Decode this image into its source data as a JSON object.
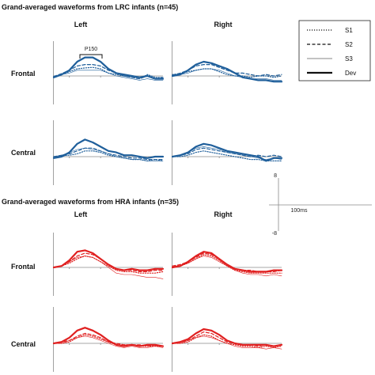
{
  "colors": {
    "lrc": "#1f5f9b",
    "hra": "#e02020",
    "axis": "#8a8a8a"
  },
  "legend": [
    {
      "label": "S1",
      "dash": "1.2,1.8",
      "width": 1.2
    },
    {
      "label": "S2",
      "dash": "4,2.5",
      "width": 1.2
    },
    {
      "label": "S3",
      "dash": "",
      "width": 0.6
    },
    {
      "label": "Dev",
      "dash": "",
      "width": 2.2
    }
  ],
  "scale": {
    "y_top": "8",
    "y_bottom": "-8",
    "x_label": "100ms"
  },
  "p150_label": "P150",
  "chart_data": [
    {
      "type": "line",
      "title": "Grand-averaged waveforms from LRC infants (n=45)",
      "columns": [
        "Left",
        "Right"
      ],
      "rows": [
        "Frontal",
        "Central"
      ],
      "color_key": "lrc",
      "xlim": [
        -100,
        600
      ],
      "ylim": [
        -8,
        8
      ],
      "panels": [
        {
          "row": "Frontal",
          "col": "Left",
          "x": [
            -100,
            -50,
            0,
            50,
            100,
            150,
            200,
            250,
            300,
            350,
            400,
            450,
            500,
            550,
            600
          ],
          "series": [
            {
              "name": "S1",
              "values": [
                -0.2,
                0.5,
                1.5,
                2.5,
                2.8,
                3.0,
                2.5,
                1.0,
                0.5,
                0.0,
                -0.5,
                -1.0,
                0.5,
                -0.5,
                -0.5
              ]
            },
            {
              "name": "S2",
              "values": [
                -0.2,
                0.8,
                2.0,
                3.5,
                4.0,
                4.0,
                3.5,
                2.0,
                1.0,
                0.0,
                -0.5,
                -1.0,
                0.0,
                -1.0,
                -0.5
              ]
            },
            {
              "name": "S3",
              "values": [
                0.0,
                0.5,
                1.0,
                2.0,
                2.0,
                2.0,
                2.0,
                1.0,
                0.0,
                -0.5,
                -1.0,
                -1.5,
                -1.0,
                -1.5,
                -1.5
              ]
            },
            {
              "name": "Dev",
              "values": [
                -0.5,
                0.5,
                2.0,
                5.0,
                6.5,
                6.5,
                5.0,
                2.5,
                1.0,
                0.5,
                0.0,
                -0.5,
                0.0,
                -1.0,
                -1.0
              ]
            }
          ]
        },
        {
          "row": "Frontal",
          "col": "Right",
          "x": [
            -100,
            -50,
            0,
            50,
            100,
            150,
            200,
            250,
            300,
            350,
            400,
            450,
            500,
            550,
            600
          ],
          "series": [
            {
              "name": "S1",
              "values": [
                0.5,
                0.8,
                1.5,
                2.0,
                2.5,
                2.5,
                1.5,
                0.5,
                0.0,
                0.0,
                -0.5,
                0.0,
                0.0,
                -0.5,
                0.0
              ]
            },
            {
              "name": "S2",
              "values": [
                0.3,
                1.0,
                2.0,
                3.5,
                4.0,
                4.0,
                3.0,
                2.0,
                1.0,
                1.0,
                0.5,
                0.0,
                0.5,
                0.0,
                0.5
              ]
            },
            {
              "name": "S3",
              "values": [
                0.0,
                0.5,
                1.0,
                2.0,
                2.5,
                2.5,
                2.0,
                1.0,
                0.0,
                -0.5,
                -1.0,
                -1.0,
                -1.0,
                -1.5,
                -1.5
              ]
            },
            {
              "name": "Dev",
              "values": [
                0.0,
                0.5,
                2.0,
                4.0,
                5.0,
                4.5,
                3.5,
                2.5,
                1.0,
                -0.5,
                -1.0,
                -1.5,
                -1.5,
                -2.0,
                -2.0
              ]
            }
          ]
        },
        {
          "row": "Central",
          "col": "Left",
          "x": [
            -100,
            -50,
            0,
            50,
            100,
            150,
            200,
            250,
            300,
            350,
            400,
            450,
            500,
            550,
            600
          ],
          "series": [
            {
              "name": "S1",
              "values": [
                0.0,
                0.3,
                0.5,
                1.0,
                2.0,
                2.0,
                1.5,
                0.5,
                0.0,
                -0.5,
                -1.0,
                -1.0,
                -1.5,
                -1.0,
                -1.5
              ]
            },
            {
              "name": "S2",
              "values": [
                0.0,
                0.5,
                1.0,
                2.0,
                3.0,
                3.0,
                2.0,
                1.0,
                0.5,
                0.0,
                -0.5,
                -0.5,
                -1.0,
                -1.0,
                -1.0
              ]
            },
            {
              "name": "S3",
              "values": [
                0.0,
                0.5,
                1.5,
                2.5,
                3.0,
                2.5,
                2.0,
                1.0,
                0.0,
                -0.5,
                -1.0,
                -1.0,
                -1.5,
                -1.5,
                -1.5
              ]
            },
            {
              "name": "Dev",
              "values": [
                -0.5,
                0.0,
                1.5,
                4.5,
                6.0,
                5.0,
                3.5,
                2.0,
                1.5,
                0.5,
                0.5,
                0.0,
                -0.5,
                0.0,
                0.0
              ]
            }
          ]
        },
        {
          "row": "Central",
          "col": "Right",
          "x": [
            -100,
            -50,
            0,
            50,
            100,
            150,
            200,
            250,
            300,
            350,
            400,
            450,
            500,
            550,
            600
          ],
          "series": [
            {
              "name": "S1",
              "values": [
                0.0,
                0.0,
                0.5,
                1.5,
                2.0,
                1.5,
                1.0,
                0.5,
                0.0,
                -0.5,
                -1.0,
                -1.0,
                -1.5,
                -1.5,
                -1.5
              ]
            },
            {
              "name": "S2",
              "values": [
                0.0,
                0.5,
                1.0,
                2.5,
                3.0,
                2.5,
                2.0,
                1.5,
                1.0,
                0.5,
                0.0,
                0.5,
                0.0,
                0.5,
                0.0
              ]
            },
            {
              "name": "S3",
              "values": [
                0.0,
                0.5,
                1.5,
                3.0,
                3.5,
                3.0,
                2.5,
                1.5,
                1.0,
                0.5,
                0.0,
                -0.5,
                -1.0,
                -0.5,
                -1.0
              ]
            },
            {
              "name": "Dev",
              "values": [
                0.0,
                0.5,
                1.5,
                3.5,
                4.5,
                4.0,
                3.0,
                2.0,
                1.5,
                1.0,
                0.5,
                0.0,
                -1.5,
                -0.5,
                -0.5
              ]
            }
          ]
        }
      ]
    },
    {
      "type": "line",
      "title": "Grand-averaged waveforms from HRA infants (n=35)",
      "columns": [
        "Left",
        "Right"
      ],
      "rows": [
        "Frontal",
        "Central"
      ],
      "color_key": "hra",
      "xlim": [
        -100,
        600
      ],
      "ylim": [
        -8,
        8
      ],
      "panels": [
        {
          "row": "Frontal",
          "col": "Left",
          "x": [
            -100,
            -50,
            0,
            50,
            100,
            150,
            200,
            250,
            300,
            350,
            400,
            450,
            500,
            550,
            600
          ],
          "series": [
            {
              "name": "S1",
              "values": [
                0.0,
                0.5,
                1.5,
                3.0,
                4.0,
                3.5,
                2.0,
                0.5,
                -1.0,
                -1.5,
                -1.5,
                -2.0,
                -2.0,
                -2.0,
                -1.5
              ]
            },
            {
              "name": "S2",
              "values": [
                0.0,
                0.5,
                2.0,
                4.0,
                5.0,
                4.5,
                3.0,
                1.0,
                -0.5,
                -1.0,
                -1.0,
                -1.5,
                -1.5,
                -1.0,
                -1.0
              ]
            },
            {
              "name": "S3",
              "values": [
                0.0,
                0.5,
                2.0,
                3.5,
                4.0,
                3.5,
                2.0,
                0.0,
                -2.0,
                -2.5,
                -2.5,
                -3.0,
                -3.5,
                -3.5,
                -4.0
              ]
            },
            {
              "name": "Dev",
              "values": [
                0.0,
                0.5,
                2.5,
                5.5,
                6.0,
                5.0,
                3.0,
                1.0,
                -0.5,
                -1.0,
                -0.5,
                -1.0,
                -1.0,
                -0.5,
                -0.5
              ]
            }
          ]
        },
        {
          "row": "Frontal",
          "col": "Right",
          "x": [
            -100,
            -50,
            0,
            50,
            100,
            150,
            200,
            250,
            300,
            350,
            400,
            450,
            500,
            550,
            600
          ],
          "series": [
            {
              "name": "S1",
              "values": [
                0.5,
                0.5,
                1.5,
                3.0,
                4.5,
                4.0,
                2.5,
                0.5,
                -1.0,
                -1.5,
                -2.0,
                -2.0,
                -2.0,
                -2.0,
                -2.0
              ]
            },
            {
              "name": "S2",
              "values": [
                0.5,
                1.0,
                2.0,
                3.5,
                5.0,
                4.5,
                3.0,
                1.0,
                -0.5,
                -1.0,
                -1.0,
                -1.5,
                -1.5,
                -1.5,
                -1.0
              ]
            },
            {
              "name": "S3",
              "values": [
                0.0,
                0.5,
                1.5,
                3.0,
                4.0,
                3.5,
                2.0,
                0.5,
                -1.0,
                -2.0,
                -2.5,
                -2.5,
                -3.0,
                -2.5,
                -3.0
              ]
            },
            {
              "name": "Dev",
              "values": [
                0.0,
                0.5,
                2.0,
                4.0,
                5.5,
                5.0,
                3.0,
                1.0,
                -0.5,
                -1.0,
                -1.5,
                -1.5,
                -1.5,
                -1.0,
                -1.0
              ]
            }
          ]
        },
        {
          "row": "Central",
          "col": "Left",
          "x": [
            -100,
            -50,
            0,
            50,
            100,
            150,
            200,
            250,
            300,
            350,
            400,
            450,
            500,
            550,
            600
          ],
          "series": [
            {
              "name": "S1",
              "values": [
                0.0,
                0.0,
                0.5,
                2.0,
                3.0,
                2.5,
                1.5,
                0.5,
                -0.5,
                -0.5,
                -0.5,
                -1.0,
                -1.0,
                -1.0,
                -1.0
              ]
            },
            {
              "name": "S2",
              "values": [
                0.0,
                0.5,
                1.0,
                2.5,
                3.5,
                3.0,
                2.0,
                0.5,
                0.0,
                -0.5,
                -0.5,
                -0.5,
                -1.0,
                -0.5,
                -1.0
              ]
            },
            {
              "name": "S3",
              "values": [
                0.0,
                0.0,
                1.0,
                2.0,
                2.5,
                2.0,
                1.0,
                0.0,
                -1.0,
                -1.5,
                -1.0,
                -1.5,
                -1.5,
                -1.0,
                -1.5
              ]
            },
            {
              "name": "Dev",
              "values": [
                0.0,
                0.5,
                2.0,
                4.5,
                5.5,
                4.5,
                3.0,
                1.0,
                -0.5,
                -1.0,
                -0.5,
                -1.0,
                -0.5,
                -0.5,
                -1.0
              ]
            }
          ]
        },
        {
          "row": "Central",
          "col": "Right",
          "x": [
            -100,
            -50,
            0,
            50,
            100,
            150,
            200,
            250,
            300,
            350,
            400,
            450,
            500,
            550,
            600
          ],
          "series": [
            {
              "name": "S1",
              "values": [
                0.0,
                0.0,
                0.5,
                2.0,
                3.0,
                2.5,
                1.0,
                0.0,
                -0.5,
                -1.0,
                -1.0,
                -1.5,
                -1.0,
                -1.5,
                -1.0
              ]
            },
            {
              "name": "S2",
              "values": [
                0.0,
                0.5,
                1.0,
                2.5,
                4.0,
                3.5,
                2.0,
                0.5,
                0.0,
                -0.5,
                -0.5,
                -1.0,
                -0.5,
                -1.0,
                -0.5
              ]
            },
            {
              "name": "S3",
              "values": [
                0.0,
                0.0,
                1.0,
                2.0,
                2.5,
                2.0,
                1.0,
                0.0,
                -1.0,
                -1.5,
                -1.5,
                -1.5,
                -2.0,
                -1.5,
                -2.0
              ]
            },
            {
              "name": "Dev",
              "values": [
                0.0,
                0.5,
                1.5,
                3.5,
                5.0,
                4.5,
                3.0,
                1.0,
                0.0,
                -0.5,
                -0.5,
                -0.5,
                -0.5,
                -1.0,
                -0.5
              ]
            }
          ]
        }
      ]
    }
  ]
}
